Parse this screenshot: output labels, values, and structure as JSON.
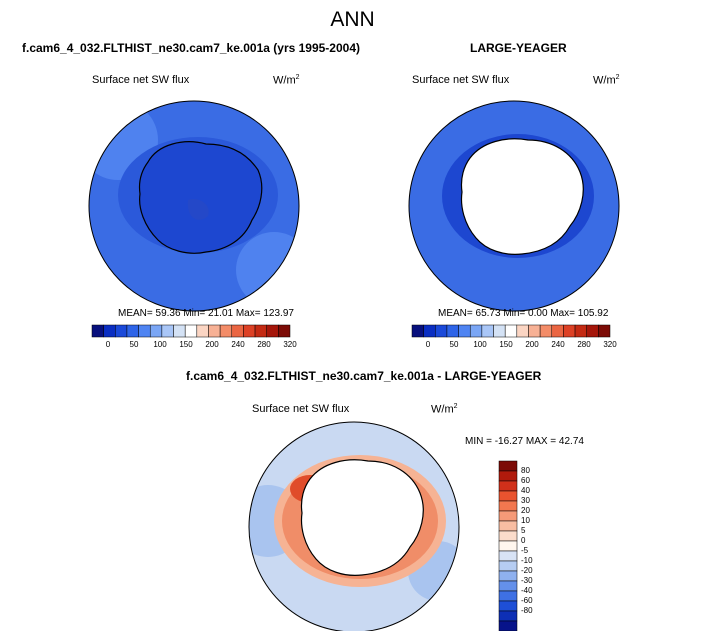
{
  "main_title": "ANN",
  "panels": {
    "model": {
      "title": "f.cam6_4_032.FLTHIST_ne30.cam7_ke.001a (yrs 1995-2004)",
      "variable": "Surface net SW flux",
      "units_base": "W/m",
      "units_exp": "2",
      "stats": "MEAN= 59.36 Min= 21.01 Max= 123.97"
    },
    "obs": {
      "title": "LARGE-YEAGER",
      "variable": "Surface net SW flux",
      "units_base": "W/m",
      "units_exp": "2",
      "stats": "MEAN= 65.73 Min= 0.00 Max= 105.92"
    },
    "diff": {
      "title": "f.cam6_4_032.FLTHIST_ne30.cam7_ke.001a - LARGE-YEAGER",
      "variable": "Surface net SW flux",
      "units_base": "W/m",
      "units_exp": "2",
      "stats": "MIN = -16.27 MAX = 42.74"
    }
  },
  "colorbar_abs": {
    "ticks": [
      "0",
      "50",
      "100",
      "150",
      "200",
      "240",
      "280",
      "320"
    ],
    "colors": [
      "#08107d",
      "#0a2ec2",
      "#1a49d9",
      "#2e64e8",
      "#4f84f2",
      "#7aa6f5",
      "#a9c6f7",
      "#d4e2f5",
      "#ffffff",
      "#fbd5c3",
      "#f7b195",
      "#f38c68",
      "#ea6542",
      "#dd4125",
      "#c42a13",
      "#a5160a",
      "#7c0b06"
    ]
  },
  "colorbar_diff": {
    "ticks": [
      "80",
      "60",
      "40",
      "30",
      "20",
      "10",
      "5",
      "0",
      "-5",
      "-10",
      "-20",
      "-30",
      "-40",
      "-60",
      "-80"
    ],
    "colors": [
      "#7c0b06",
      "#b01a0c",
      "#d1301a",
      "#e9532f",
      "#f2774f",
      "#f59a78",
      "#f8bda2",
      "#fbdccb",
      "#fff6ee",
      "#d8e3f5",
      "#b6cdf2",
      "#8fb1ef",
      "#6490ea",
      "#3e70e4",
      "#1e4fd6",
      "#0d2fb5",
      "#07138a"
    ]
  },
  "map_colors": {
    "ocean_mid": "#3a6ce4",
    "ocean_dark": "#1d47d0",
    "ocean_light": "#4f82ef",
    "land_white": "#ffffff",
    "coast": "#000000",
    "diff_pos": "#f08d68",
    "diff_strong": "#e04c2a",
    "diff_neg": "#a9c4ef",
    "diff_neg_light": "#c9d9f2"
  }
}
